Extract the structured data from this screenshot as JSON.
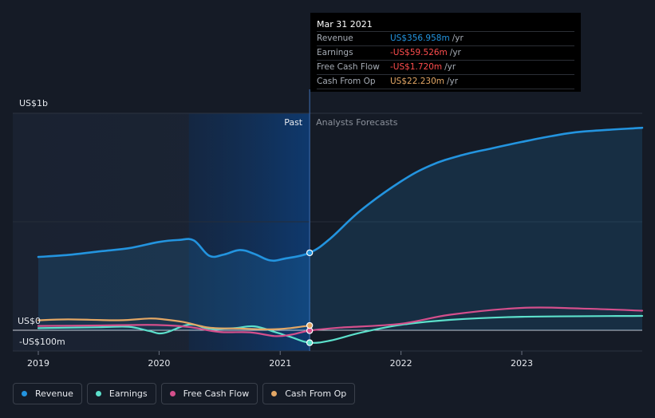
{
  "chart_data": {
    "type": "line",
    "y_unit": "US$",
    "y_ticks": [
      {
        "value": 1000,
        "label": "US$1b"
      },
      {
        "value": 0,
        "label": "US$0"
      },
      {
        "value": -100,
        "label": "-US$100m"
      }
    ],
    "ylim": [
      -100,
      1000
    ],
    "xlim": [
      "2019-01-01",
      "2023-12-31"
    ],
    "x_ticks": [
      {
        "value": "2019-01-01",
        "label": "2019"
      },
      {
        "value": "2020-01-01",
        "label": "2020"
      },
      {
        "value": "2021-01-01",
        "label": "2021"
      },
      {
        "value": "2022-01-01",
        "label": "2022"
      },
      {
        "value": "2023-01-01",
        "label": "2023"
      }
    ],
    "divider_date": "2021-03-31",
    "highlight_range": [
      "2020-03-31",
      "2021-03-31"
    ],
    "past_label": "Past",
    "forecast_label": "Analysts Forecasts",
    "grid": true,
    "legend_position": "bottom-left",
    "series": [
      {
        "name": "Revenue",
        "color": "#2394df",
        "fill": true,
        "points": [
          [
            "2019-01-01",
            338
          ],
          [
            "2019-04-01",
            347
          ],
          [
            "2019-07-01",
            363
          ],
          [
            "2019-10-01",
            378
          ],
          [
            "2020-01-01",
            407
          ],
          [
            "2020-03-01",
            416
          ],
          [
            "2020-04-15",
            414
          ],
          [
            "2020-06-01",
            343
          ],
          [
            "2020-07-15",
            349
          ],
          [
            "2020-09-01",
            370
          ],
          [
            "2020-10-15",
            352
          ],
          [
            "2020-12-01",
            322
          ],
          [
            "2021-01-15",
            330
          ],
          [
            "2021-03-31",
            357
          ],
          [
            "2021-06-01",
            422
          ],
          [
            "2021-09-01",
            552
          ],
          [
            "2022-01-01",
            686
          ],
          [
            "2022-04-01",
            760
          ],
          [
            "2022-07-01",
            806
          ],
          [
            "2022-10-01",
            838
          ],
          [
            "2023-01-01",
            868
          ],
          [
            "2023-04-01",
            895
          ],
          [
            "2023-07-01",
            915
          ],
          [
            "2023-12-31",
            933
          ]
        ]
      },
      {
        "name": "Earnings",
        "color": "#5ce0cb",
        "fill": false,
        "points": [
          [
            "2019-01-01",
            10
          ],
          [
            "2019-07-01",
            14
          ],
          [
            "2019-10-01",
            16
          ],
          [
            "2019-12-01",
            -3
          ],
          [
            "2020-01-15",
            -14
          ],
          [
            "2020-04-01",
            26
          ],
          [
            "2020-06-01",
            7
          ],
          [
            "2020-08-15",
            10
          ],
          [
            "2020-10-15",
            18
          ],
          [
            "2020-12-15",
            -8
          ],
          [
            "2021-02-01",
            -32
          ],
          [
            "2021-03-31",
            -60
          ],
          [
            "2021-06-01",
            -50
          ],
          [
            "2021-09-01",
            -12
          ],
          [
            "2022-01-01",
            25
          ],
          [
            "2022-06-01",
            48
          ],
          [
            "2023-01-01",
            62
          ],
          [
            "2023-12-31",
            66
          ]
        ]
      },
      {
        "name": "Free Cash Flow",
        "color": "#d44f8c",
        "fill": false,
        "points": [
          [
            "2019-01-01",
            20
          ],
          [
            "2019-07-01",
            22
          ],
          [
            "2019-10-01",
            24
          ],
          [
            "2020-01-01",
            24
          ],
          [
            "2020-04-01",
            15
          ],
          [
            "2020-07-01",
            -8
          ],
          [
            "2020-10-01",
            -10
          ],
          [
            "2020-12-15",
            -28
          ],
          [
            "2021-02-01",
            -22
          ],
          [
            "2021-03-31",
            -2
          ],
          [
            "2021-07-01",
            12
          ],
          [
            "2022-01-01",
            30
          ],
          [
            "2022-06-01",
            72
          ],
          [
            "2023-01-01",
            103
          ],
          [
            "2023-07-01",
            100
          ],
          [
            "2023-12-31",
            90
          ]
        ]
      },
      {
        "name": "Cash From Op",
        "color": "#e3a765",
        "fill": false,
        "points": [
          [
            "2019-01-01",
            46
          ],
          [
            "2019-04-01",
            50
          ],
          [
            "2019-09-01",
            46
          ],
          [
            "2019-12-01",
            54
          ],
          [
            "2020-01-15",
            50
          ],
          [
            "2020-03-15",
            38
          ],
          [
            "2020-06-01",
            12
          ],
          [
            "2020-09-01",
            8
          ],
          [
            "2020-12-01",
            4
          ],
          [
            "2021-02-01",
            10
          ],
          [
            "2021-03-31",
            22
          ]
        ]
      }
    ]
  },
  "tooltip": {
    "date": "Mar 31 2021",
    "rows": [
      {
        "name": "Revenue",
        "value": "US$356.958m",
        "unit": "/yr",
        "color": "#2394df"
      },
      {
        "name": "Earnings",
        "value": "-US$59.526m",
        "unit": "/yr",
        "color": "#ff4d4d"
      },
      {
        "name": "Free Cash Flow",
        "value": "-US$1.720m",
        "unit": "/yr",
        "color": "#ff4d4d"
      },
      {
        "name": "Cash From Op",
        "value": "US$22.230m",
        "unit": "/yr",
        "color": "#e3a765"
      }
    ]
  },
  "legend": [
    {
      "label": "Revenue",
      "color": "#2394df"
    },
    {
      "label": "Earnings",
      "color": "#5ce0cb"
    },
    {
      "label": "Free Cash Flow",
      "color": "#d44f8c"
    },
    {
      "label": "Cash From Op",
      "color": "#e3a765"
    }
  ]
}
